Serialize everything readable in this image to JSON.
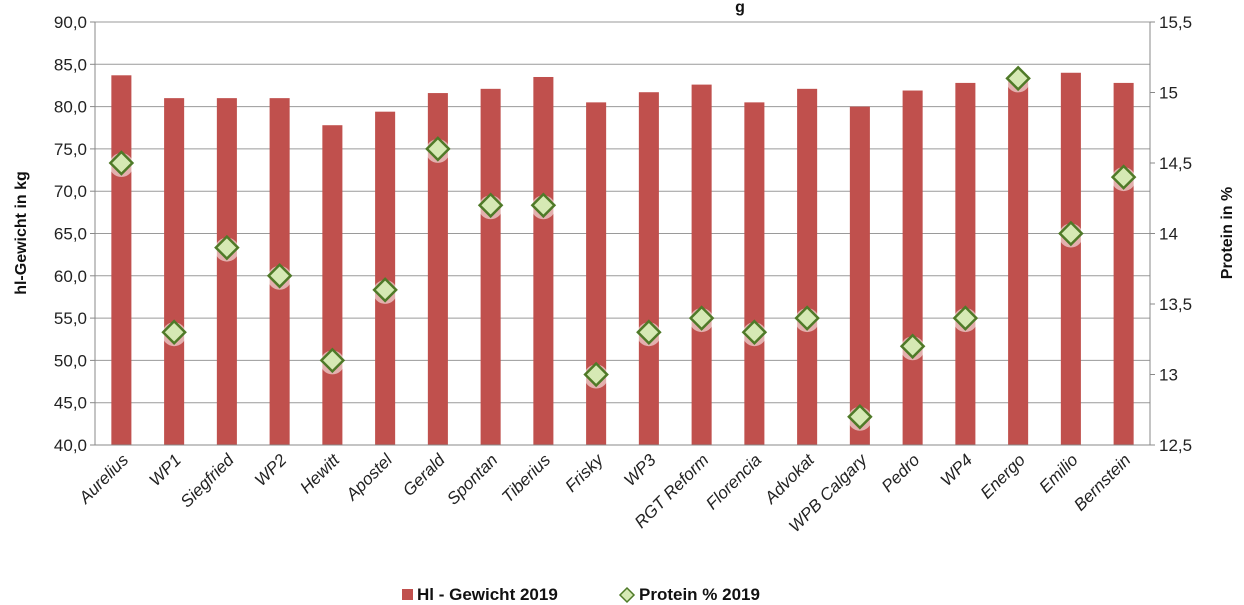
{
  "chart_data": {
    "type": "bar",
    "title_fragment": "g",
    "ylabel": "hl-Gewicht in kg",
    "y2label": "Protein in %",
    "ylim": [
      40,
      90
    ],
    "y2lim": [
      12.5,
      15.5
    ],
    "yticks": [
      "40,0",
      "45,0",
      "50,0",
      "55,0",
      "60,0",
      "65,0",
      "70,0",
      "75,0",
      "80,0",
      "85,0",
      "90,0"
    ],
    "y2ticks": [
      "12,5",
      "13",
      "13,5",
      "14",
      "14,5",
      "15",
      "15,5"
    ],
    "grid": true,
    "legend_position": "bottom",
    "categories": [
      "Aurelius",
      "WP1",
      "Siegfried",
      "WP2",
      "Hewitt",
      "Apostel",
      "Gerald",
      "Spontan",
      "Tiberius",
      "Frisky",
      "WP3",
      "RGT Reform",
      "Florencia",
      "Advokat",
      "WPB Calgary",
      "Pedro",
      "WP4",
      "Energo",
      "Emilio",
      "Bernstein"
    ],
    "series": [
      {
        "name": "Hl - Gewicht 2019",
        "kind": "bar",
        "axis": "left",
        "color": "#c0504d",
        "values": [
          83.7,
          81.0,
          81.0,
          81.0,
          77.8,
          79.4,
          81.6,
          82.1,
          83.5,
          80.5,
          81.7,
          82.6,
          80.5,
          82.1,
          80.0,
          81.9,
          82.8,
          83.5,
          84.0,
          82.8
        ]
      },
      {
        "name": "Protein % 2019",
        "kind": "marker",
        "axis": "right",
        "color": "#d6e9b4",
        "stroke": "#4f7a28",
        "values": [
          14.5,
          13.3,
          13.9,
          13.7,
          13.1,
          13.6,
          14.6,
          14.2,
          14.2,
          13.0,
          13.3,
          13.4,
          13.3,
          13.4,
          12.7,
          13.2,
          13.4,
          15.1,
          14.0,
          14.4
        ]
      }
    ]
  }
}
